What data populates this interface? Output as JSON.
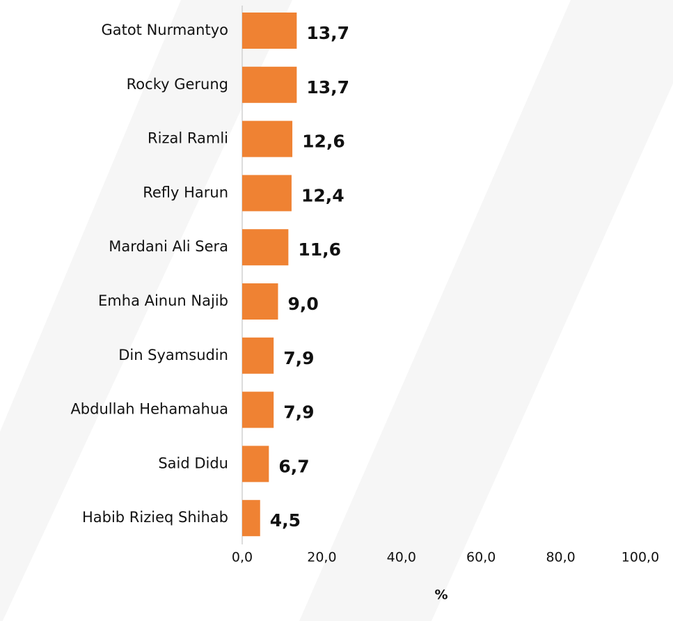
{
  "chart_data": {
    "type": "bar",
    "orientation": "horizontal",
    "categories": [
      "Gatot Nurmantyo",
      "Rocky Gerung",
      "Rizal Ramli",
      "Refly Harun",
      "Mardani Ali Sera",
      "Emha Ainun Najib",
      "Din Syamsudin",
      "Abdullah Hehamahua",
      "Said Didu",
      "Habib Rizieq Shihab"
    ],
    "values": [
      13.7,
      13.7,
      12.6,
      12.4,
      11.6,
      9.0,
      7.9,
      7.9,
      6.7,
      4.5
    ],
    "value_labels": [
      "13,7",
      "13,7",
      "12,6",
      "12,4",
      "11,6",
      "9,0",
      "7,9",
      "7,9",
      "6,7",
      "4,5"
    ],
    "color": "#ef8233",
    "xlabel": "%",
    "xlim": [
      0,
      100
    ],
    "xticks": [
      {
        "value": 0,
        "label": "0,0"
      },
      {
        "value": 20,
        "label": "20,0"
      },
      {
        "value": 40,
        "label": "40,0"
      },
      {
        "value": 60,
        "label": "60,0"
      },
      {
        "value": 80,
        "label": "80,0"
      },
      {
        "value": 100,
        "label": "100,0"
      }
    ],
    "grid": false
  }
}
